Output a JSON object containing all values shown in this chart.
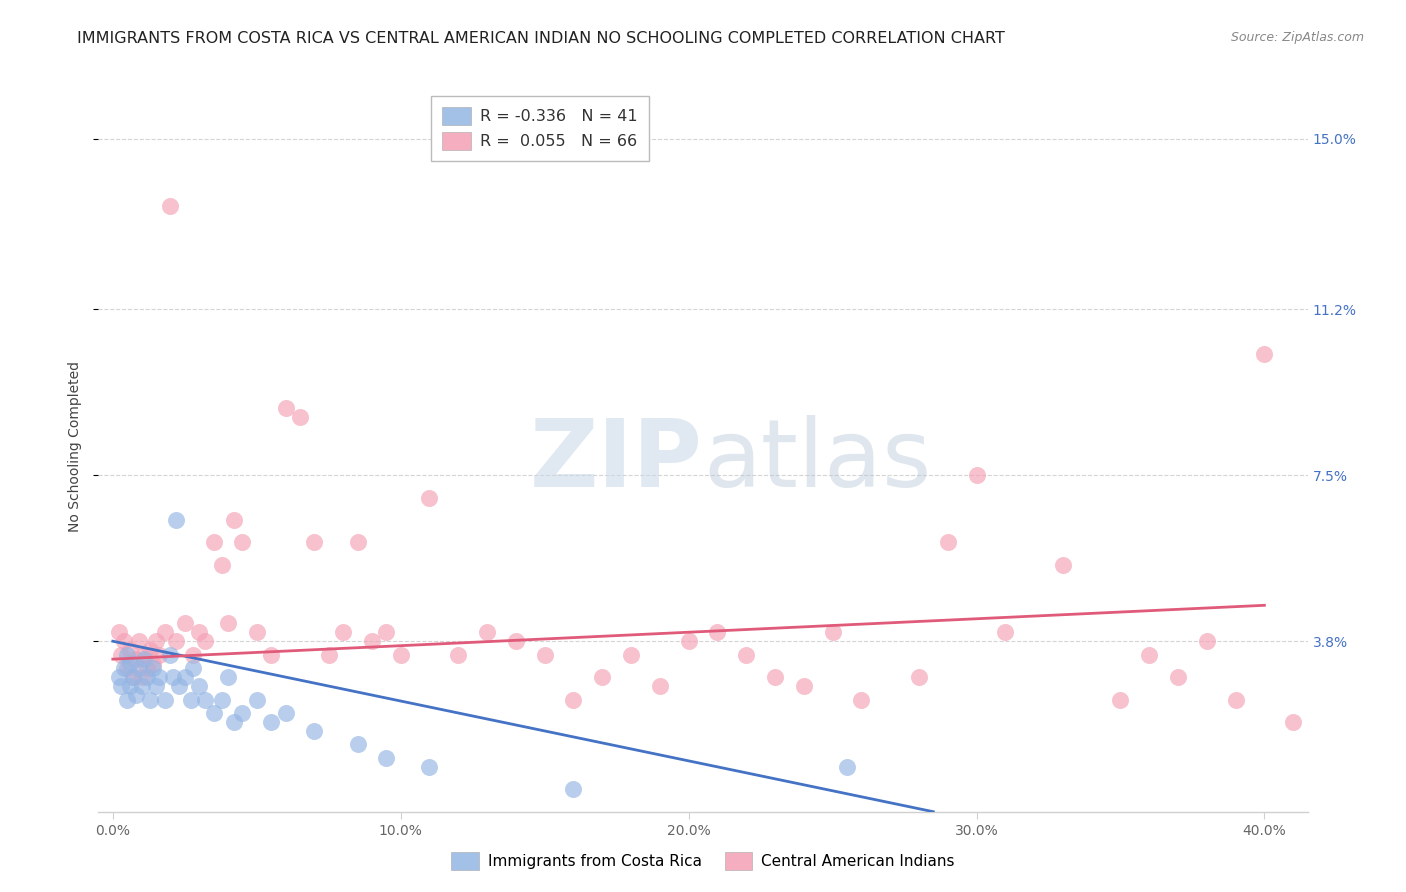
{
  "title": "IMMIGRANTS FROM COSTA RICA VS CENTRAL AMERICAN INDIAN NO SCHOOLING COMPLETED CORRELATION CHART",
  "source": "Source: ZipAtlas.com",
  "xlabel_ticks": [
    "0.0%",
    "10.0%",
    "20.0%",
    "30.0%",
    "40.0%"
  ],
  "xlabel_vals": [
    0.0,
    0.1,
    0.2,
    0.3,
    0.4
  ],
  "ylabel": "No Schooling Completed",
  "ylabel_ticks": [
    "3.8%",
    "7.5%",
    "11.2%",
    "15.0%"
  ],
  "ylabel_vals": [
    0.038,
    0.075,
    0.112,
    0.15
  ],
  "xlim": [
    -0.005,
    0.415
  ],
  "ylim": [
    0.0,
    0.163
  ],
  "legend_blue_r": "-0.336",
  "legend_blue_n": "41",
  "legend_pink_r": "0.055",
  "legend_pink_n": "66",
  "legend_blue_label": "Immigrants from Costa Rica",
  "legend_pink_label": "Central American Indians",
  "blue_line_x": [
    0.0,
    0.285
  ],
  "blue_line_y": [
    0.038,
    0.0
  ],
  "pink_line_x": [
    0.0,
    0.4
  ],
  "pink_line_y": [
    0.034,
    0.046
  ],
  "blue_color": "#93b5e3",
  "pink_color": "#f4a0b5",
  "blue_line_color": "#4472c4",
  "pink_line_color": "#e05a7a",
  "grid_color": "#d0d0d0",
  "background_color": "#ffffff",
  "watermark_zip": "ZIP",
  "watermark_atlas": "atlas",
  "title_fontsize": 11.5,
  "label_fontsize": 10,
  "tick_fontsize": 10,
  "right_tick_color": "#4472c4",
  "blue_scatter_x": [
    0.002,
    0.003,
    0.004,
    0.005,
    0.005,
    0.006,
    0.006,
    0.007,
    0.008,
    0.009,
    0.01,
    0.011,
    0.012,
    0.013,
    0.014,
    0.015,
    0.016,
    0.018,
    0.02,
    0.021,
    0.022,
    0.023,
    0.025,
    0.027,
    0.028,
    0.03,
    0.032,
    0.035,
    0.038,
    0.04,
    0.042,
    0.045,
    0.05,
    0.055,
    0.06,
    0.07,
    0.085,
    0.095,
    0.11,
    0.16,
    0.255
  ],
  "blue_scatter_y": [
    0.03,
    0.028,
    0.032,
    0.025,
    0.035,
    0.028,
    0.033,
    0.03,
    0.026,
    0.032,
    0.028,
    0.034,
    0.03,
    0.025,
    0.032,
    0.028,
    0.03,
    0.025,
    0.035,
    0.03,
    0.065,
    0.028,
    0.03,
    0.025,
    0.032,
    0.028,
    0.025,
    0.022,
    0.025,
    0.03,
    0.02,
    0.022,
    0.025,
    0.02,
    0.022,
    0.018,
    0.015,
    0.012,
    0.01,
    0.005,
    0.01
  ],
  "pink_scatter_x": [
    0.002,
    0.003,
    0.004,
    0.005,
    0.006,
    0.007,
    0.008,
    0.009,
    0.01,
    0.011,
    0.012,
    0.013,
    0.014,
    0.015,
    0.016,
    0.018,
    0.02,
    0.022,
    0.025,
    0.028,
    0.03,
    0.032,
    0.035,
    0.038,
    0.04,
    0.042,
    0.045,
    0.05,
    0.055,
    0.06,
    0.065,
    0.07,
    0.075,
    0.08,
    0.085,
    0.09,
    0.095,
    0.1,
    0.11,
    0.12,
    0.13,
    0.14,
    0.15,
    0.16,
    0.17,
    0.18,
    0.19,
    0.2,
    0.21,
    0.22,
    0.23,
    0.24,
    0.25,
    0.26,
    0.28,
    0.29,
    0.3,
    0.31,
    0.33,
    0.35,
    0.36,
    0.37,
    0.38,
    0.39,
    0.4,
    0.41
  ],
  "pink_scatter_y": [
    0.04,
    0.035,
    0.038,
    0.032,
    0.036,
    0.03,
    0.034,
    0.038,
    0.03,
    0.035,
    0.032,
    0.036,
    0.033,
    0.038,
    0.035,
    0.04,
    0.135,
    0.038,
    0.042,
    0.035,
    0.04,
    0.038,
    0.06,
    0.055,
    0.042,
    0.065,
    0.06,
    0.04,
    0.035,
    0.09,
    0.088,
    0.06,
    0.035,
    0.04,
    0.06,
    0.038,
    0.04,
    0.035,
    0.07,
    0.035,
    0.04,
    0.038,
    0.035,
    0.025,
    0.03,
    0.035,
    0.028,
    0.038,
    0.04,
    0.035,
    0.03,
    0.028,
    0.04,
    0.025,
    0.03,
    0.06,
    0.075,
    0.04,
    0.055,
    0.025,
    0.035,
    0.03,
    0.038,
    0.025,
    0.102,
    0.02
  ]
}
